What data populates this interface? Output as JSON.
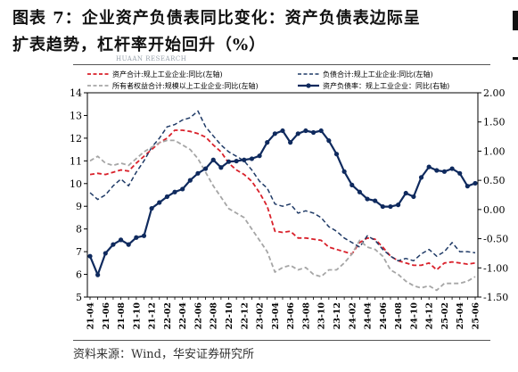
{
  "title": {
    "line1": "图表 7：企业资产负债表同比变化：资产负债表边际呈",
    "line2": "扩表趋势，杠杆率开始回升（%）"
  },
  "watermark": "HUAAN RESEARCH",
  "source": "资料来源：Wind，华安证券研究所",
  "colors": {
    "asset": "#d9202a",
    "liability": "#1f3a66",
    "equity": "#a6a6a6",
    "ratio": "#0f2a5e"
  },
  "chart_data": {
    "type": "line",
    "x": [
      "21-04",
      "21-05",
      "21-06",
      "21-07",
      "21-08",
      "21-09",
      "21-10",
      "21-11",
      "21-12",
      "22-01",
      "22-02",
      "22-03",
      "22-04",
      "22-05",
      "22-06",
      "22-07",
      "22-08",
      "22-09",
      "22-10",
      "22-11",
      "22-12",
      "23-01",
      "23-02",
      "23-03",
      "23-04",
      "23-05",
      "23-06",
      "23-07",
      "23-08",
      "23-09",
      "23-10",
      "23-11",
      "23-12",
      "24-01",
      "24-02",
      "24-03",
      "24-04",
      "24-05",
      "24-06",
      "24-07",
      "24-08",
      "24-09",
      "24-10",
      "24-11",
      "24-12",
      "25-01",
      "25-02",
      "25-03",
      "25-04",
      "25-05",
      "25-06"
    ],
    "x_tick_labels": [
      "21-04",
      "21-06",
      "21-08",
      "21-10",
      "21-12",
      "22-02",
      "22-04",
      "22-06",
      "22-08",
      "22-10",
      "22-12",
      "23-02",
      "23-04",
      "23-06",
      "23-08",
      "23-10",
      "23-12",
      "24-02",
      "24-04",
      "24-06",
      "24-08",
      "24-10",
      "24-12",
      "25-02",
      "25-04",
      "25-06"
    ],
    "y_left": {
      "min": 5,
      "max": 14,
      "ticks": [
        5,
        6,
        7,
        8,
        9,
        10,
        11,
        12,
        13,
        14
      ]
    },
    "y_right": {
      "min": -1.5,
      "max": 2.0,
      "ticks": [
        "-1.50",
        "-1.00",
        "-0.50",
        "0.00",
        "0.50",
        "1.00",
        "1.50",
        "2.00"
      ]
    },
    "legend_position": "top",
    "series": [
      {
        "name": "资产合计:规上工业企业:同比(左轴)",
        "axis": "left",
        "style": "dash-red",
        "values": [
          10.4,
          10.45,
          10.4,
          10.5,
          10.6,
          10.55,
          10.9,
          11.2,
          11.5,
          11.8,
          12.0,
          12.35,
          12.35,
          12.3,
          12.2,
          12.05,
          11.7,
          11.4,
          10.9,
          10.6,
          10.4,
          10.1,
          9.6,
          9.0,
          7.9,
          7.85,
          7.9,
          7.6,
          7.6,
          7.55,
          7.5,
          7.2,
          7.1,
          7.0,
          6.9,
          7.4,
          7.6,
          7.55,
          7.2,
          6.8,
          6.6,
          6.5,
          6.4,
          6.4,
          6.5,
          6.2,
          6.5,
          6.55,
          6.5,
          6.45,
          6.5
        ]
      },
      {
        "name": "负债合计:规上工业企业:同比(左轴)",
        "axis": "left",
        "style": "dash-navy",
        "values": [
          9.6,
          9.3,
          9.5,
          9.9,
          10.2,
          9.9,
          10.5,
          11.0,
          11.6,
          12.0,
          12.5,
          12.6,
          12.8,
          12.9,
          13.2,
          12.5,
          12.1,
          11.7,
          11.4,
          11.2,
          11.0,
          10.6,
          10.1,
          9.8,
          9.1,
          9.0,
          9.1,
          8.7,
          8.8,
          8.7,
          8.5,
          8.1,
          7.9,
          7.6,
          7.4,
          7.2,
          7.7,
          7.5,
          7.1,
          6.8,
          6.6,
          6.7,
          6.6,
          6.9,
          7.1,
          6.8,
          7.0,
          7.4,
          7.0,
          7.0,
          6.95
        ]
      },
      {
        "name": "所有者权益合计:规模以上工业企业:同比(左轴)",
        "axis": "left",
        "style": "dash-gray",
        "values": [
          11.0,
          11.2,
          10.9,
          10.8,
          10.9,
          10.8,
          11.1,
          11.4,
          11.6,
          11.8,
          11.9,
          11.9,
          11.7,
          11.5,
          11.1,
          10.5,
          9.9,
          9.4,
          8.9,
          8.7,
          8.5,
          8.0,
          7.5,
          7.0,
          6.1,
          6.3,
          6.4,
          6.2,
          6.3,
          6.0,
          5.9,
          6.2,
          6.2,
          6.5,
          6.9,
          7.5,
          7.2,
          7.1,
          6.8,
          6.2,
          6.0,
          5.7,
          5.5,
          5.4,
          5.5,
          5.3,
          5.6,
          5.6,
          5.6,
          5.7,
          5.9
        ]
      },
      {
        "name": "资产负债率：规上工业企业：同比(右轴)",
        "axis": "right",
        "style": "solid-marker-navy",
        "values": [
          -0.8,
          -1.12,
          -0.75,
          -0.6,
          -0.52,
          -0.6,
          -0.48,
          -0.45,
          0.02,
          0.12,
          0.22,
          0.3,
          0.35,
          0.5,
          0.62,
          0.7,
          0.85,
          0.72,
          0.82,
          0.83,
          0.85,
          0.87,
          0.92,
          1.15,
          1.3,
          1.35,
          1.15,
          1.3,
          1.35,
          1.32,
          1.35,
          1.18,
          0.95,
          0.65,
          0.42,
          0.3,
          0.18,
          0.15,
          0.05,
          0.05,
          0.08,
          0.28,
          0.22,
          0.55,
          0.73,
          0.67,
          0.65,
          0.7,
          0.62,
          0.4,
          0.45
        ]
      }
    ]
  }
}
